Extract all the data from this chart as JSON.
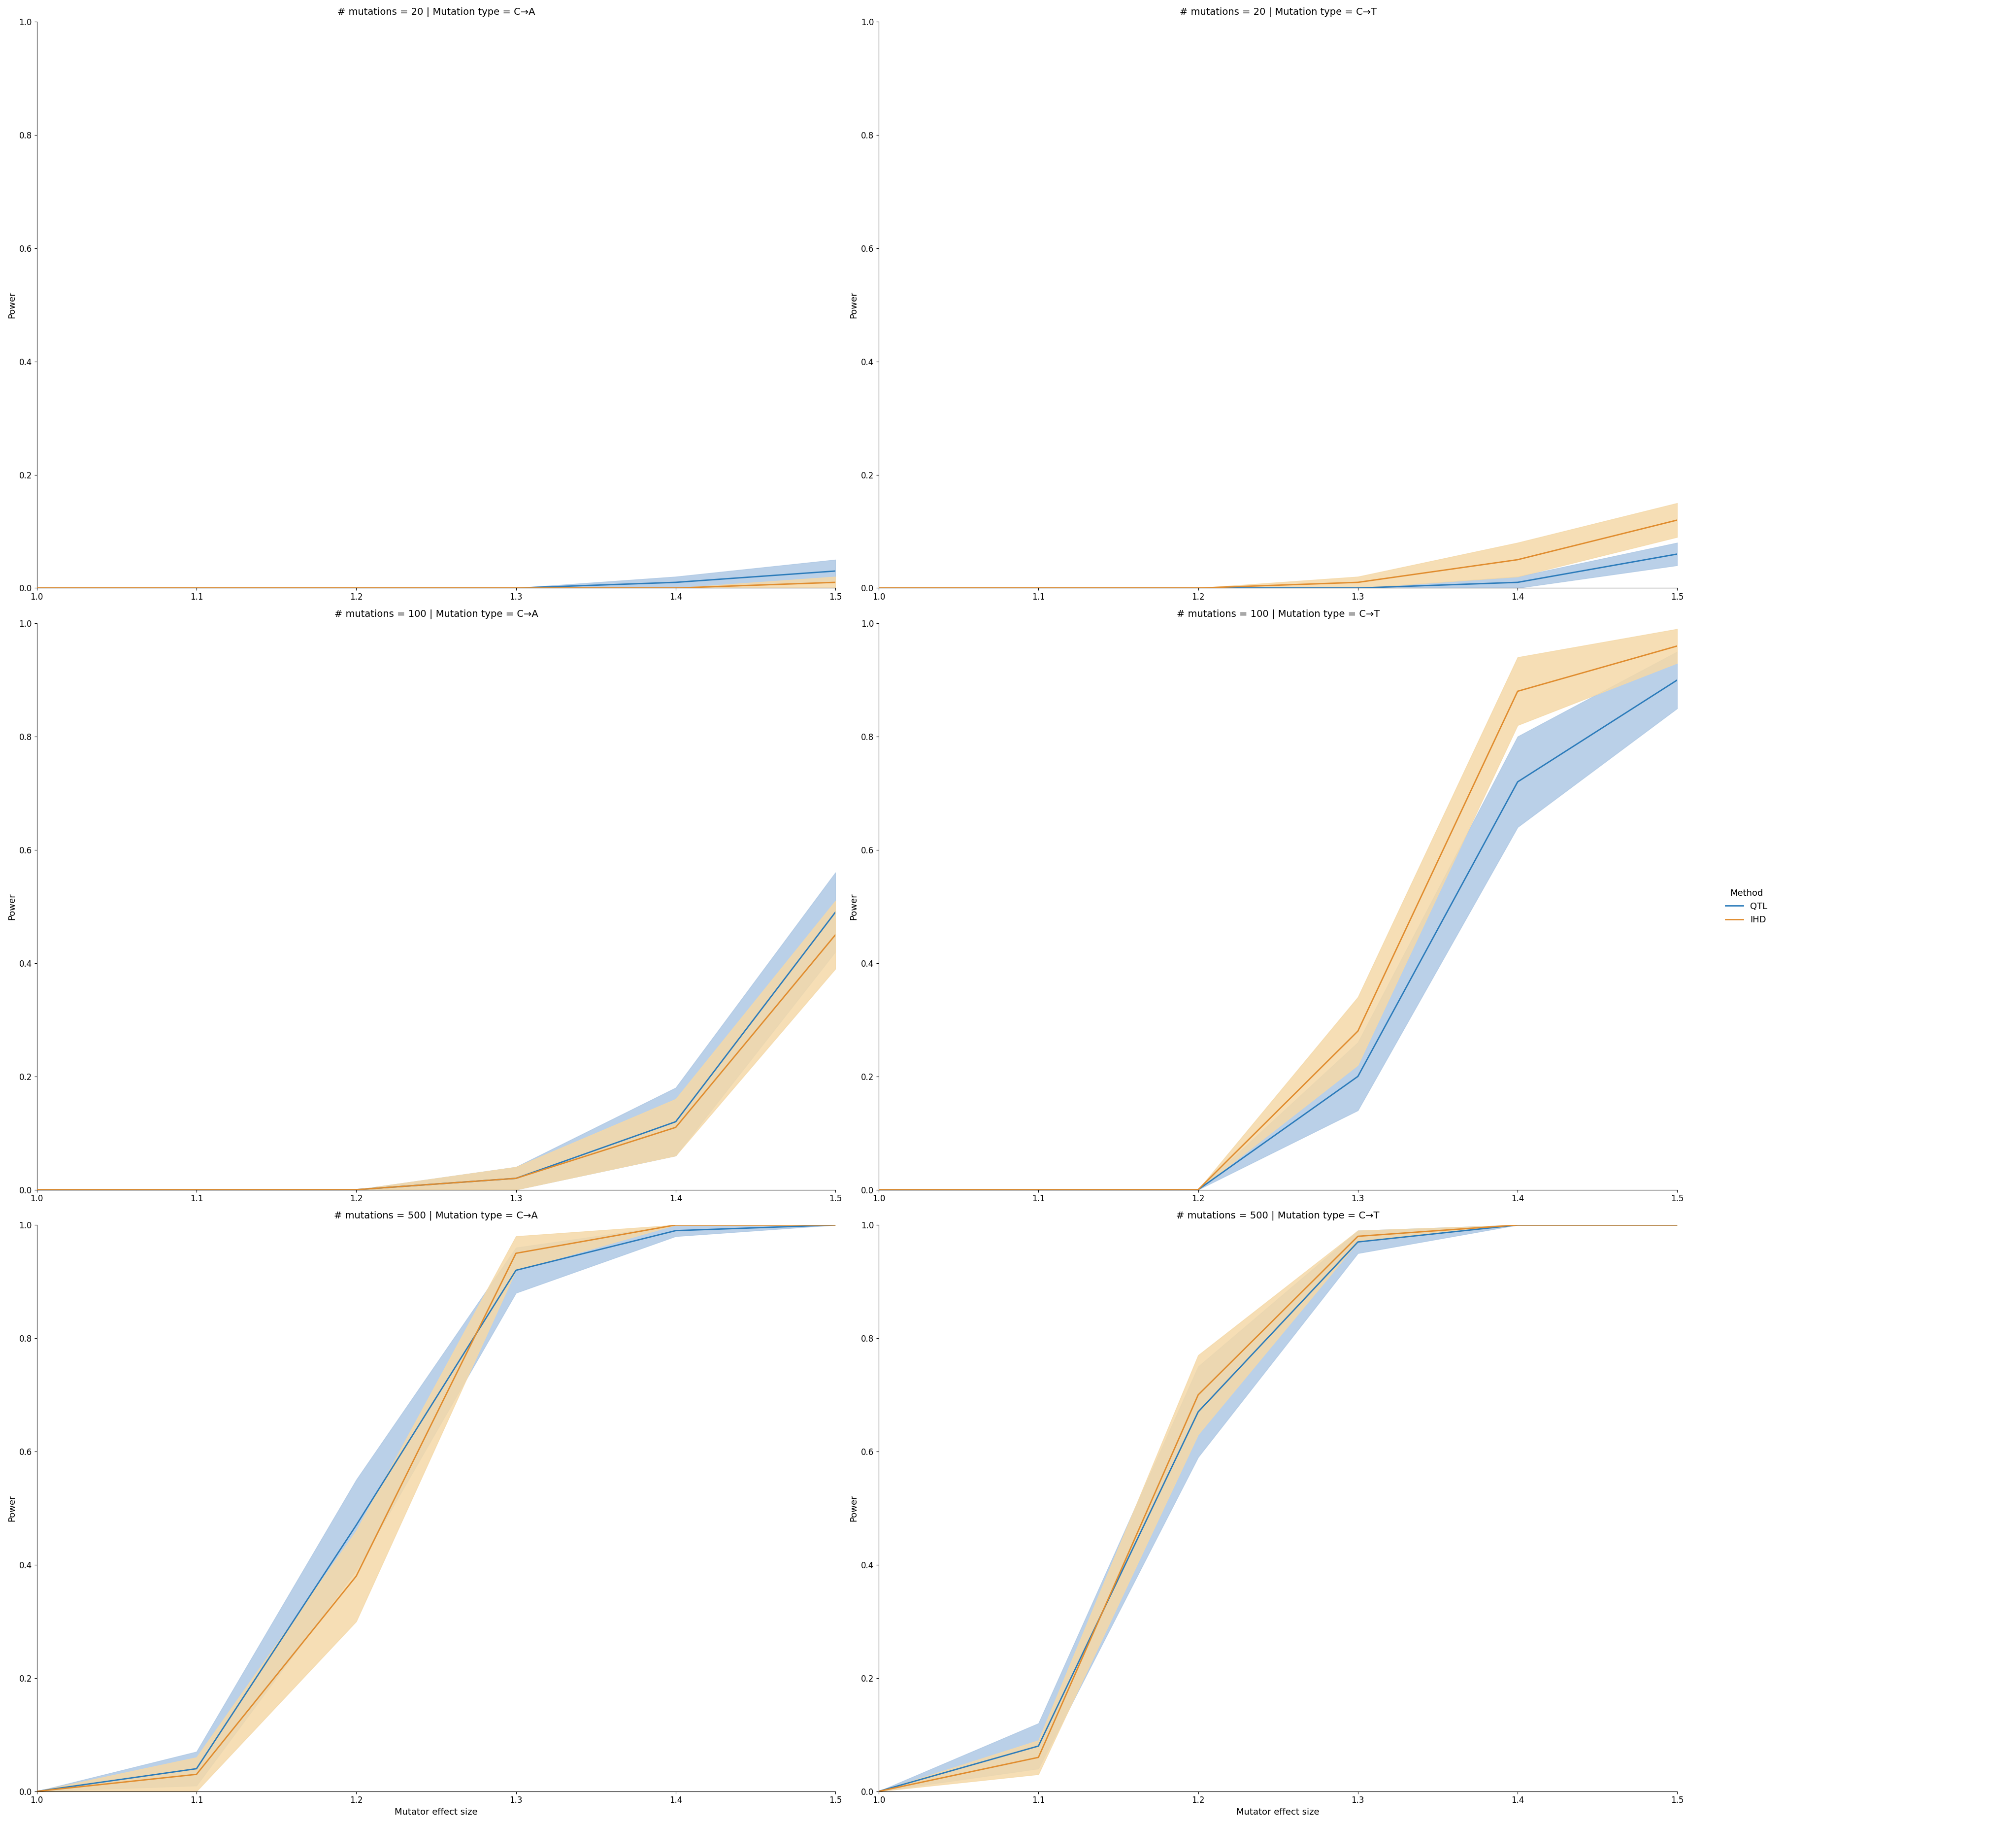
{
  "x": [
    1.0,
    1.1,
    1.2,
    1.3,
    1.4,
    1.5
  ],
  "panels": [
    {
      "row": 0,
      "col": 0,
      "title": "# mutations = 20 | Mutation type = C→A",
      "qtl_mean": [
        0.0,
        0.0,
        0.0,
        0.0,
        0.01,
        0.03
      ],
      "qtl_std": [
        0.0,
        0.0,
        0.0,
        0.0,
        0.01,
        0.02
      ],
      "ihd_mean": [
        0.0,
        0.0,
        0.0,
        0.0,
        0.0,
        0.01
      ],
      "ihd_std": [
        0.0,
        0.0,
        0.0,
        0.0,
        0.0,
        0.01
      ]
    },
    {
      "row": 0,
      "col": 1,
      "title": "# mutations = 20 | Mutation type = C→T",
      "qtl_mean": [
        0.0,
        0.0,
        0.0,
        0.0,
        0.01,
        0.06
      ],
      "qtl_std": [
        0.0,
        0.0,
        0.0,
        0.0,
        0.01,
        0.02
      ],
      "ihd_mean": [
        0.0,
        0.0,
        0.0,
        0.01,
        0.05,
        0.12
      ],
      "ihd_std": [
        0.0,
        0.0,
        0.0,
        0.01,
        0.03,
        0.03
      ]
    },
    {
      "row": 1,
      "col": 0,
      "title": "# mutations = 100 | Mutation type = C→A",
      "qtl_mean": [
        0.0,
        0.0,
        0.0,
        0.02,
        0.12,
        0.49
      ],
      "qtl_std": [
        0.0,
        0.0,
        0.0,
        0.02,
        0.06,
        0.07
      ],
      "ihd_mean": [
        0.0,
        0.0,
        0.0,
        0.02,
        0.11,
        0.45
      ],
      "ihd_std": [
        0.0,
        0.0,
        0.0,
        0.02,
        0.05,
        0.06
      ]
    },
    {
      "row": 1,
      "col": 1,
      "title": "# mutations = 100 | Mutation type = C→T",
      "qtl_mean": [
        0.0,
        0.0,
        0.0,
        0.2,
        0.72,
        0.9
      ],
      "qtl_std": [
        0.0,
        0.0,
        0.0,
        0.06,
        0.08,
        0.05
      ],
      "ihd_mean": [
        0.0,
        0.0,
        0.0,
        0.28,
        0.88,
        0.96
      ],
      "ihd_std": [
        0.0,
        0.0,
        0.0,
        0.06,
        0.06,
        0.03
      ]
    },
    {
      "row": 2,
      "col": 0,
      "title": "# mutations = 500 | Mutation type = C→A",
      "qtl_mean": [
        0.0,
        0.04,
        0.47,
        0.92,
        0.99,
        1.0
      ],
      "qtl_std": [
        0.0,
        0.03,
        0.08,
        0.04,
        0.01,
        0.0
      ],
      "ihd_mean": [
        0.0,
        0.03,
        0.38,
        0.95,
        1.0,
        1.0
      ],
      "ihd_std": [
        0.0,
        0.03,
        0.08,
        0.03,
        0.0,
        0.0
      ]
    },
    {
      "row": 2,
      "col": 1,
      "title": "# mutations = 500 | Mutation type = C→T",
      "qtl_mean": [
        0.0,
        0.08,
        0.67,
        0.97,
        1.0,
        1.0
      ],
      "qtl_std": [
        0.0,
        0.04,
        0.08,
        0.02,
        0.0,
        0.0
      ],
      "ihd_mean": [
        0.0,
        0.06,
        0.7,
        0.98,
        1.0,
        1.0
      ],
      "ihd_std": [
        0.0,
        0.03,
        0.07,
        0.01,
        0.0,
        0.0
      ]
    }
  ],
  "qtl_color": "#2b7bba",
  "ihd_color": "#e08c2e",
  "qtl_fill": "#aec8e4",
  "ihd_fill": "#f5d9a8",
  "xlabel": "Mutator effect size",
  "ylabel": "Power",
  "xlim": [
    1.0,
    1.5
  ],
  "ylim": [
    0.0,
    1.0
  ],
  "xticks": [
    1.0,
    1.1,
    1.2,
    1.3,
    1.4,
    1.5
  ],
  "yticks": [
    0.0,
    0.2,
    0.4,
    0.6,
    0.8,
    1.0
  ],
  "legend_title": "Method",
  "legend_labels": [
    "QTL",
    "IHD"
  ],
  "title_fontsize": 14,
  "axis_fontsize": 13,
  "tick_fontsize": 12,
  "legend_fontsize": 13,
  "line_width": 2.0
}
